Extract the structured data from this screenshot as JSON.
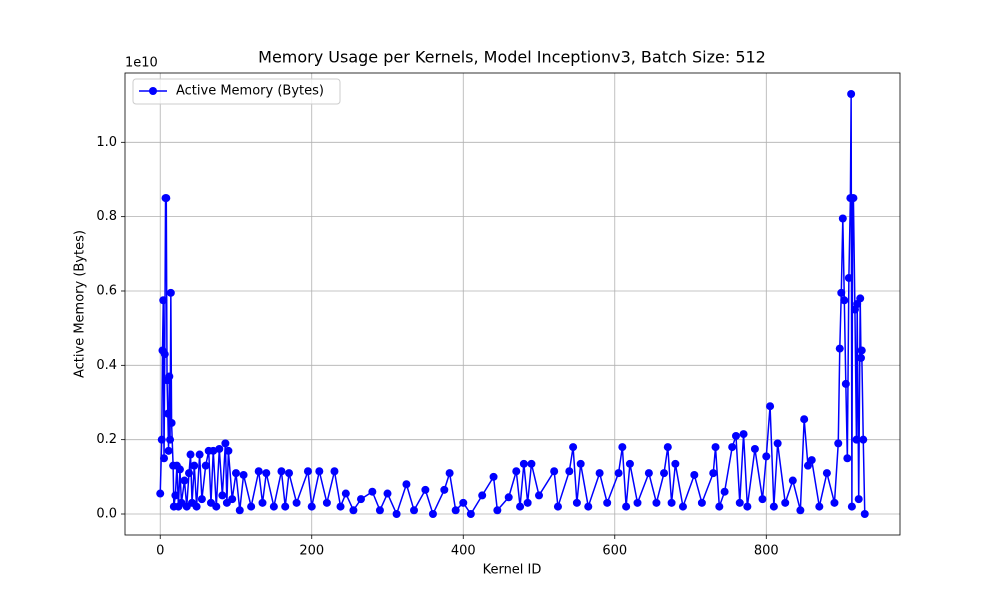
{
  "chart_data": {
    "type": "line",
    "title": "Memory Usage per Kernels, Model Inceptionv3, Batch Size: 512",
    "x_label": "Kernel ID",
    "y_label": "Active Memory (Bytes)",
    "y_offset_label": "1e10",
    "grid": true,
    "legend": "upper left",
    "marker": "circle",
    "x": [
      0,
      2,
      3,
      4,
      5,
      6,
      7,
      8,
      9,
      10,
      11,
      12,
      13,
      14,
      15,
      17,
      18,
      20,
      22,
      24,
      26,
      28,
      32,
      35,
      38,
      40,
      42,
      45,
      48,
      52,
      55,
      60,
      64,
      67,
      70,
      74,
      78,
      82,
      86,
      88,
      90,
      95,
      100,
      105,
      110,
      120,
      130,
      135,
      140,
      150,
      160,
      165,
      170,
      180,
      195,
      200,
      210,
      220,
      230,
      238,
      245,
      255,
      265,
      280,
      290,
      300,
      312,
      325,
      335,
      350,
      360,
      375,
      382,
      390,
      400,
      410,
      425,
      440,
      445,
      460,
      470,
      475,
      480,
      485,
      490,
      500,
      520,
      525,
      540,
      545,
      550,
      555,
      565,
      580,
      590,
      605,
      610,
      615,
      620,
      630,
      645,
      655,
      665,
      670,
      675,
      680,
      690,
      705,
      715,
      730,
      733,
      738,
      745,
      755,
      760,
      765,
      770,
      775,
      785,
      795,
      800,
      805,
      810,
      815,
      825,
      835,
      845,
      850,
      855,
      860,
      870,
      880,
      890,
      895,
      897,
      899,
      901,
      903,
      905,
      907,
      909,
      911,
      912,
      913,
      914,
      915,
      917,
      919,
      920,
      922,
      924,
      925,
      926,
      928,
      930
    ],
    "series": [
      {
        "name": "Active Memory (Bytes)",
        "color": "#0000ff",
        "values": [
          0.055,
          0.2,
          0.44,
          0.575,
          0.15,
          0.43,
          0.85,
          0.85,
          0.36,
          0.27,
          0.17,
          0.37,
          0.2,
          0.595,
          0.245,
          0.13,
          0.02,
          0.05,
          0.13,
          0.02,
          0.12,
          0.03,
          0.09,
          0.02,
          0.11,
          0.16,
          0.03,
          0.13,
          0.02,
          0.16,
          0.04,
          0.13,
          0.17,
          0.03,
          0.17,
          0.02,
          0.175,
          0.05,
          0.19,
          0.03,
          0.17,
          0.04,
          0.11,
          0.01,
          0.105,
          0.02,
          0.115,
          0.03,
          0.11,
          0.02,
          0.115,
          0.02,
          0.11,
          0.03,
          0.115,
          0.02,
          0.115,
          0.03,
          0.115,
          0.02,
          0.055,
          0.01,
          0.04,
          0.06,
          0.01,
          0.055,
          0,
          0.08,
          0.01,
          0.065,
          0,
          0.065,
          0.11,
          0.01,
          0.03,
          0,
          0.05,
          0.1,
          0.01,
          0.045,
          0.115,
          0.02,
          0.135,
          0.03,
          0.135,
          0.05,
          0.115,
          0.02,
          0.115,
          0.18,
          0.03,
          0.135,
          0.02,
          0.11,
          0.03,
          0.11,
          0.18,
          0.02,
          0.135,
          0.03,
          0.11,
          0.03,
          0.11,
          0.18,
          0.03,
          0.135,
          0.02,
          0.105,
          0.03,
          0.11,
          0.18,
          0.02,
          0.06,
          0.18,
          0.21,
          0.03,
          0.215,
          0.02,
          0.175,
          0.04,
          0.155,
          0.29,
          0.02,
          0.19,
          0.03,
          0.09,
          0.01,
          0.255,
          0.13,
          0.145,
          0.02,
          0.11,
          0.03,
          0.19,
          0.445,
          0.595,
          0.795,
          0.575,
          0.35,
          0.15,
          0.635,
          0.85,
          1.13,
          0.02,
          0.85,
          0.85,
          0.55,
          0.2,
          0.565,
          0.04,
          0.58,
          0.42,
          0.44,
          0.2,
          0
        ]
      }
    ],
    "xlim": [
      -46.5,
      976.5
    ],
    "xticks": [
      0,
      200,
      400,
      600,
      800
    ],
    "ylim": [
      -0.0565,
      1.1865
    ],
    "yticks": [
      {
        "value": 0,
        "label": "0.0"
      },
      0.2,
      0.4,
      0.6,
      0.8,
      {
        "value": 1,
        "label": "1.0"
      }
    ]
  }
}
